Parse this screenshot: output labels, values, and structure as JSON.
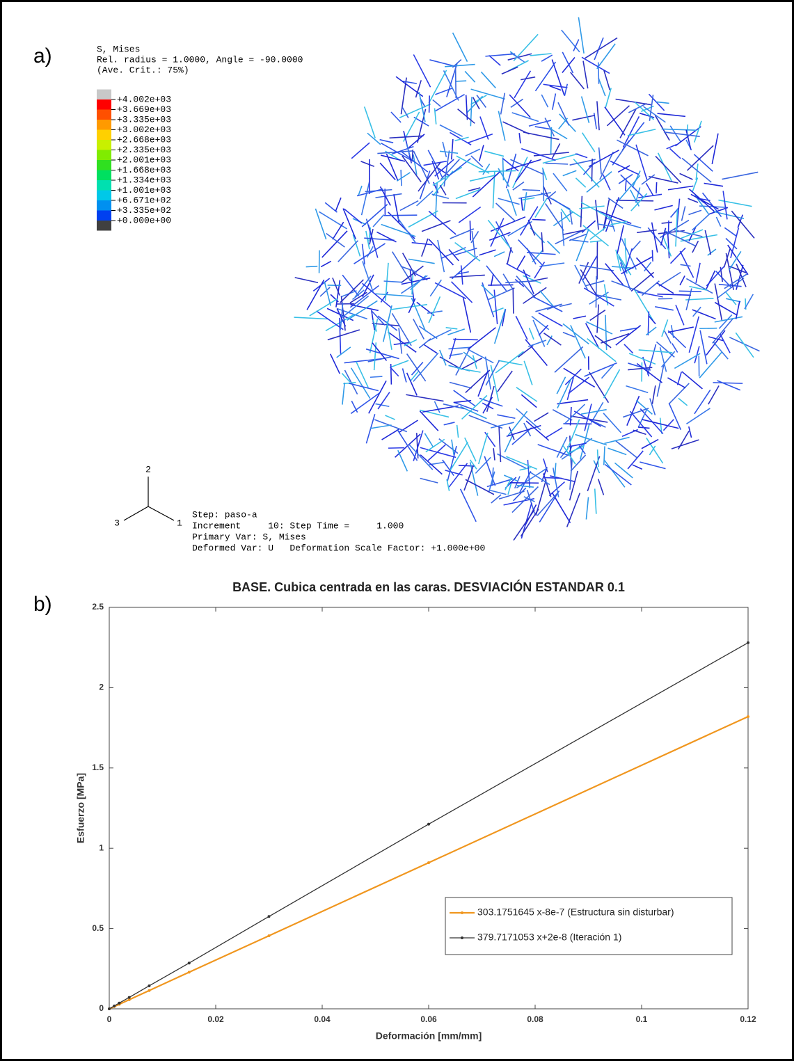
{
  "panel_a": {
    "label": "a)",
    "legend_header": [
      "S, Mises",
      "Rel. radius = 1.0000, Angle = -90.0000",
      "(Ave. Crit.: 75%)"
    ],
    "legend_values": [
      "+4.002e+03",
      "+3.669e+03",
      "+3.335e+03",
      "+3.002e+03",
      "+2.668e+03",
      "+2.335e+03",
      "+2.001e+03",
      "+1.668e+03",
      "+1.334e+03",
      "+1.001e+03",
      "+6.671e+02",
      "+3.335e+02",
      "+0.000e+00"
    ],
    "triad": [
      "2",
      "3",
      "1"
    ],
    "step_info": [
      "Step: paso-a",
      "Increment     10: Step Time =     1.000",
      "Primary Var: S, Mises",
      "Deformed Var: U   Deformation Scale Factor: +1.000e+00"
    ]
  },
  "panel_b_label": "b)",
  "chart_data": {
    "type": "line",
    "title": "BASE. Cubica centrada en las caras. DESVIACIÓN ESTANDAR 0.1",
    "x_label": "Deformación [mm/mm]",
    "y_label": "Esfuerzo [MPa]",
    "x": [
      0,
      0.0009375,
      0.001875,
      0.00375,
      0.0075,
      0.015,
      0.03,
      0.06,
      0.12
    ],
    "series": [
      {
        "name": "303.1751645 x-8e-7 (Estructura sin disturbar)",
        "color": "#f0961e",
        "values": [
          0,
          0.014,
          0.028,
          0.057,
          0.114,
          0.228,
          0.455,
          0.91,
          1.82
        ]
      },
      {
        "name": "379.7171053 x+2e-8 (Iteración 1)",
        "color": "#333333",
        "values": [
          0,
          0.018,
          0.036,
          0.071,
          0.143,
          0.285,
          0.575,
          1.15,
          2.28
        ]
      }
    ],
    "xlim": [
      0,
      0.12
    ],
    "xticks": [
      0,
      0.02,
      0.04,
      0.06,
      0.08,
      0.1,
      0.12
    ],
    "ylim": [
      0,
      2.5
    ],
    "yticks": [
      0,
      0.5,
      1,
      1.5,
      2,
      2.5
    ],
    "legend": "lower right",
    "grid": false
  }
}
